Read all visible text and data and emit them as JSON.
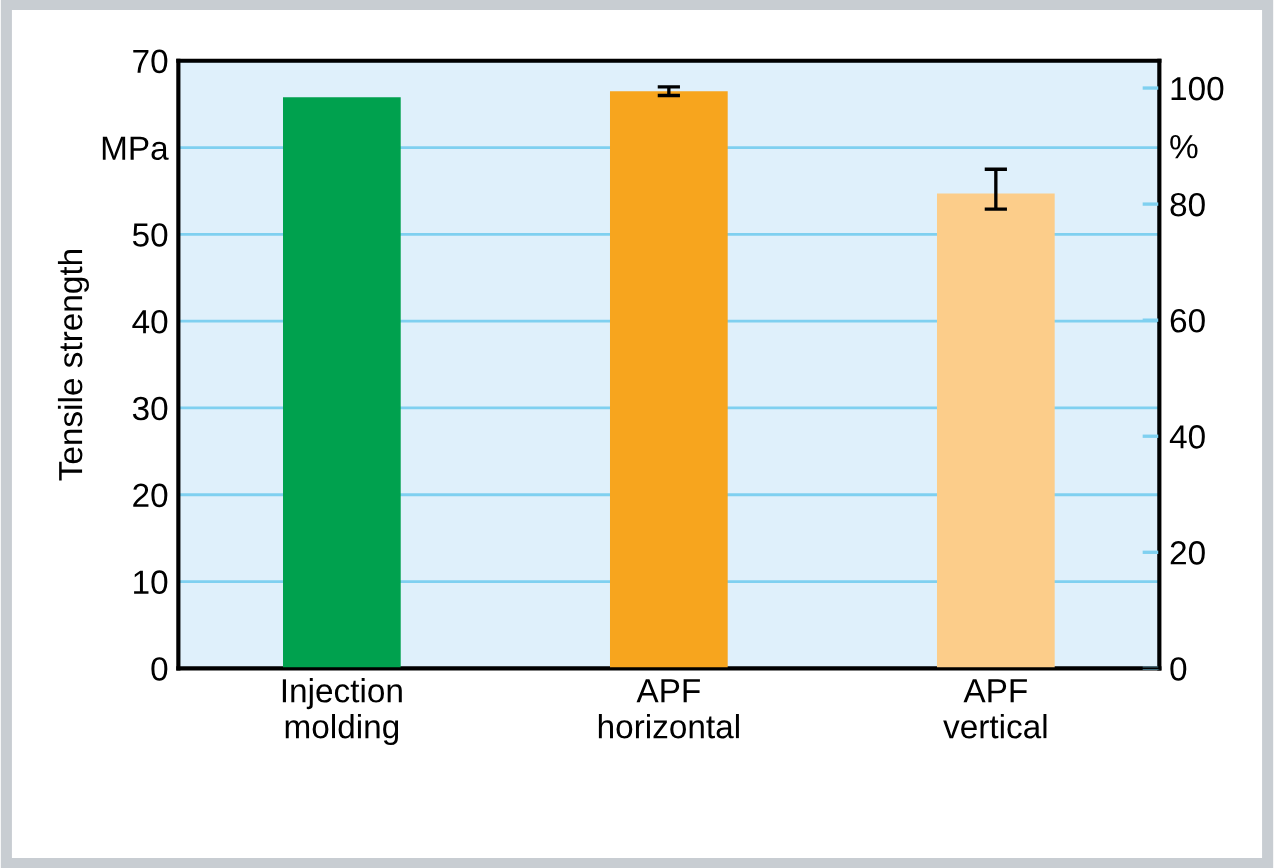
{
  "chart_data": {
    "type": "bar",
    "ylabel": "Tensile strength",
    "categories": [
      "Injection\nmolding",
      "APF\nhorizontal",
      "APF\nvertical"
    ],
    "values": [
      65.8,
      66.5,
      54.7
    ],
    "colors": [
      "#00a14e",
      "#f7a51e",
      "#fccd8a"
    ],
    "errors": [
      null,
      0.5,
      [
        52.9,
        57.5
      ]
    ],
    "ylim": [
      0,
      70
    ],
    "yticks": [
      0,
      10,
      20,
      30,
      40,
      50,
      {
        "value": 60,
        "label": "MPa"
      },
      70
    ],
    "y2lim": [
      0,
      104.7
    ],
    "y2ticks": [
      0,
      20,
      40,
      60,
      80,
      {
        "value": 90,
        "label": "%"
      },
      100
    ],
    "grid": "y"
  }
}
